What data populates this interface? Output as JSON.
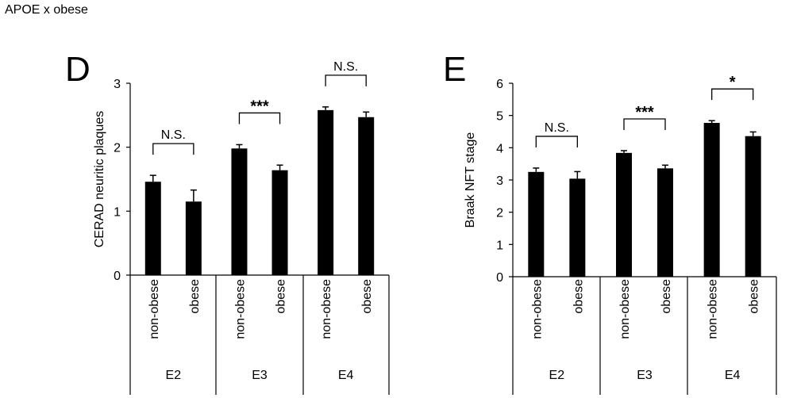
{
  "header": {
    "title": "APOE x obese"
  },
  "chart_data": [
    {
      "type": "bar",
      "panel_label": "D",
      "ylabel": "CERAD neuritic plaques",
      "ylim": [
        0,
        3
      ],
      "yticks": [
        0,
        1,
        2,
        3
      ],
      "groups": [
        "E2",
        "E3",
        "E4"
      ],
      "categories": [
        "non-obese",
        "obese",
        "non-obese",
        "obese",
        "non-obese",
        "obese"
      ],
      "values": [
        1.46,
        1.15,
        1.98,
        1.64,
        2.58,
        2.47
      ],
      "errors": [
        0.1,
        0.18,
        0.06,
        0.08,
        0.05,
        0.08
      ],
      "significance": [
        "N.S.",
        "***",
        "N.S."
      ],
      "bar_color": "#000000"
    },
    {
      "type": "bar",
      "panel_label": "E",
      "ylabel": "Braak NFT stage",
      "ylim": [
        0,
        6
      ],
      "yticks": [
        0,
        1,
        2,
        3,
        4,
        5,
        6
      ],
      "groups": [
        "E2",
        "E3",
        "E4"
      ],
      "categories": [
        "non-obese",
        "obese",
        "non-obese",
        "obese",
        "non-obese",
        "obese"
      ],
      "values": [
        3.25,
        3.04,
        3.84,
        3.36,
        4.77,
        4.36
      ],
      "errors": [
        0.12,
        0.22,
        0.07,
        0.1,
        0.07,
        0.13
      ],
      "significance": [
        "N.S.",
        "***",
        "*"
      ],
      "bar_color": "#000000"
    }
  ]
}
